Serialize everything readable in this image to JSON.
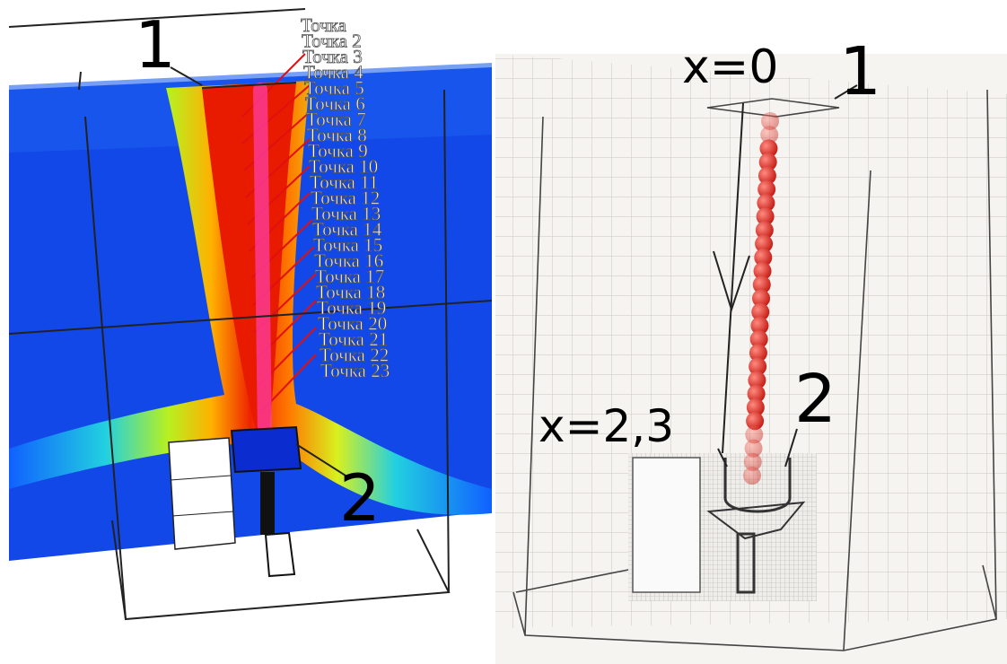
{
  "left_panel": {
    "inlet_label": "1",
    "outlet_label": "2",
    "point_labels": [
      "Точка",
      "Точка 2",
      "Точка 3",
      "Точка 4",
      "Точка 5",
      "Точка 6",
      "Точка 7",
      "Точка 8",
      "Точка 9",
      "Точка 10",
      "Точка 11",
      "Точка 12",
      "Точка 13",
      "Точка 14",
      "Точка 15",
      "Точка 16",
      "Точка 17",
      "Точка 18",
      "Точка 19",
      "Точка 20",
      "Точка 21",
      "Точка 22",
      "Точка 23"
    ]
  },
  "right_panel": {
    "inlet_label": "1",
    "outlet_label": "2",
    "x_start": "x=0",
    "x_end": "x=2,3"
  }
}
